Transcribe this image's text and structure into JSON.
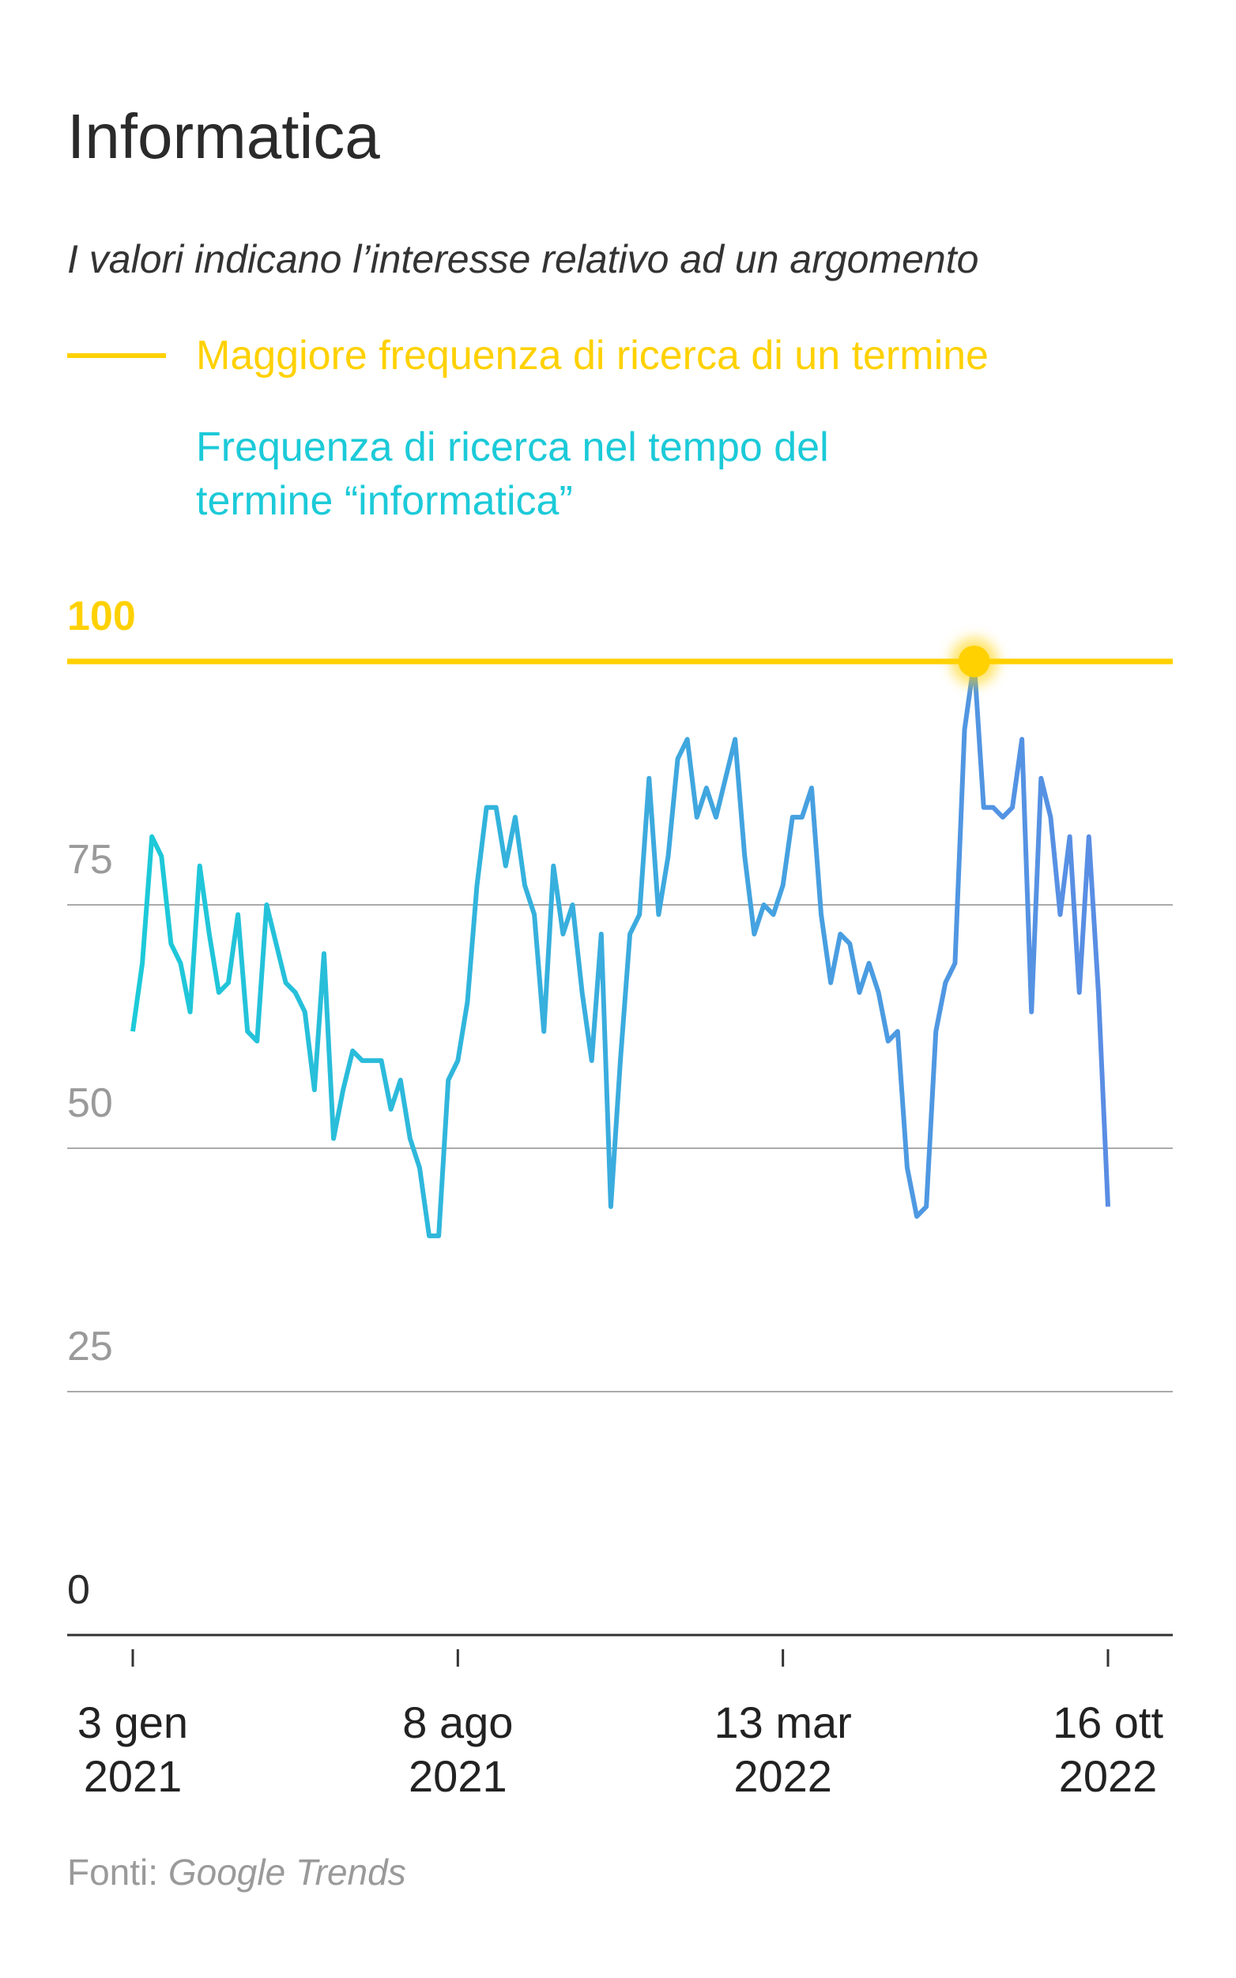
{
  "chart_data": {
    "type": "line",
    "title": "Informatica",
    "subtitle": "I valori indicano l’interesse relativo ad un argomento",
    "reference": {
      "name": "Maggiore frequenza di ricerca di un termine",
      "color": "#ffd100",
      "value": 100
    },
    "series": [
      {
        "name": "Frequenza di ricerca nel tempo del termine “informatica”",
        "color": [
          "#1ccad8",
          "#5a8de4"
        ],
        "values": [
          62,
          69,
          82,
          80,
          71,
          69,
          64,
          79,
          72,
          66,
          67,
          74,
          62,
          61,
          75,
          71,
          67,
          66,
          64,
          56,
          70,
          51,
          56,
          60,
          59,
          59,
          59,
          54,
          57,
          51,
          48,
          41,
          41,
          57,
          59,
          65,
          77,
          85,
          85,
          79,
          84,
          77,
          74,
          62,
          79,
          72,
          75,
          66,
          59,
          72,
          44,
          59,
          72,
          74,
          88,
          74,
          80,
          90,
          92,
          84,
          87,
          84,
          88,
          92,
          80,
          72,
          75,
          74,
          77,
          84,
          84,
          87,
          74,
          67,
          72,
          71,
          66,
          69,
          66,
          61,
          62,
          48,
          43,
          44,
          62,
          67,
          69,
          93,
          100,
          85,
          85,
          84,
          85,
          92,
          64,
          88,
          84,
          74,
          82,
          66,
          82,
          66,
          44
        ]
      }
    ],
    "xlim": [
      0,
      102
    ],
    "xticks": [
      {
        "value": 0,
        "label": "3 gen 2021"
      },
      {
        "value": 34,
        "label": "8 ago 2021"
      },
      {
        "value": 68,
        "label": "13 mar 2022"
      },
      {
        "value": 102,
        "label": "16 ott 2022"
      }
    ],
    "ylim": [
      0,
      100
    ],
    "yticks": [
      0,
      25,
      50,
      75,
      100
    ],
    "grid": true,
    "source_label": "Fonti:",
    "source": "Google Trends"
  }
}
